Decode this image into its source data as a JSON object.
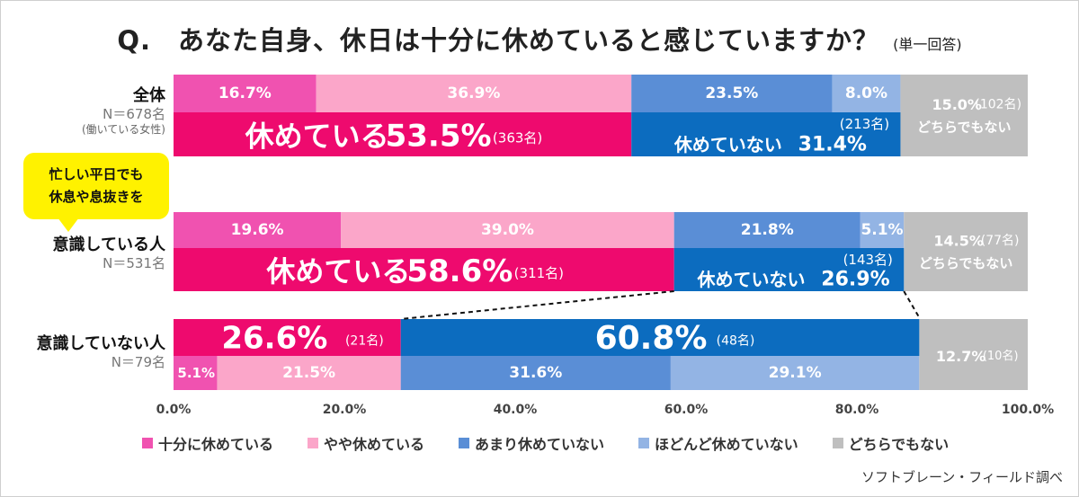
{
  "title": "Q.　あなた自身、休日は十分に休めていると感じていますか？",
  "title_note": "(単一回答)",
  "rows": [
    {
      "name": "全体",
      "n": "N＝678名",
      "sub": "(働いている女性)"
    },
    {
      "name": "意識している人",
      "n": "N＝531名",
      "sub": ""
    },
    {
      "name": "意識していない人",
      "n": "N＝79名",
      "sub": ""
    }
  ],
  "callout": {
    "line1": "忙しい平日でも",
    "line2": "休息や息抜きを"
  },
  "legend": [
    {
      "label": "十分に休めている",
      "color": "#f052b0"
    },
    {
      "label": "やや休めている",
      "color": "#fba6c9"
    },
    {
      "label": "あまり休めていない",
      "color": "#5a8ed6"
    },
    {
      "label": "ほどんど休めていない",
      "color": "#93b4e4"
    },
    {
      "label": "どちらでもない",
      "color": "#bfbfbf"
    }
  ],
  "source": "ソフトブレーン・フィールド調べ",
  "chart_data": {
    "type": "bar",
    "orientation": "horizontal-stacked-100",
    "title": "Q.　あなた自身、休日は十分に休めていると感じていますか？",
    "xlim": [
      0,
      100
    ],
    "x_ticks": [
      "0.0%",
      "20.0%",
      "40.0%",
      "60.0%",
      "80.0%",
      "100.0%"
    ],
    "categories": [
      "全体",
      "意識している人",
      "意識していない人"
    ],
    "series": [
      {
        "name": "十分に休めている",
        "values": [
          16.7,
          19.6,
          5.1
        ],
        "labels": [
          "16.7%",
          "19.6%",
          "5.1%"
        ]
      },
      {
        "name": "やや休めている",
        "values": [
          36.9,
          39.0,
          21.5
        ],
        "labels": [
          "36.9%",
          "39.0%",
          "21.5%"
        ]
      },
      {
        "name": "あまり休めていない",
        "values": [
          23.5,
          21.8,
          31.6
        ],
        "labels": [
          "23.5%",
          "21.8%",
          "31.6%"
        ]
      },
      {
        "name": "ほどんど休めていない",
        "values": [
          8.0,
          5.1,
          29.1
        ],
        "labels": [
          "8.0%",
          "5.1%",
          "29.1%"
        ]
      },
      {
        "name": "どちらでもない",
        "values": [
          15.0,
          14.5,
          12.7
        ],
        "labels": [
          "15.0%",
          "14.5%",
          "12.7%"
        ]
      }
    ],
    "summary": [
      {
        "rest": {
          "value": 53.5,
          "text": "休めている",
          "pct": "53.5%",
          "count": "(363名)"
        },
        "norest": {
          "value": 31.4,
          "text": "休めていない",
          "pct": "31.4%",
          "count": "(213名)"
        },
        "neither": {
          "pct": "15.0%",
          "count": "(102名)",
          "text": "どちらでもない"
        }
      },
      {
        "rest": {
          "value": 58.6,
          "text": "休めている",
          "pct": "58.6%",
          "count": "(311名)"
        },
        "norest": {
          "value": 26.9,
          "text": "休めていない",
          "pct": "26.9%",
          "count": "(143名)"
        },
        "neither": {
          "pct": "14.5%",
          "count": "(77名)",
          "text": "どちらでもない"
        }
      },
      {
        "rest": {
          "value": 26.6,
          "pct": "26.6%",
          "count": "(21名)"
        },
        "norest": {
          "value": 60.8,
          "pct": "60.8%",
          "count": "(48名)"
        },
        "neither": {
          "pct": "12.7%",
          "count": "(10名)"
        }
      }
    ],
    "colors": {
      "rest_summary": "#ee0a6e",
      "norest_summary": "#0c6cbf",
      "neither": "#bfbfbf"
    }
  }
}
